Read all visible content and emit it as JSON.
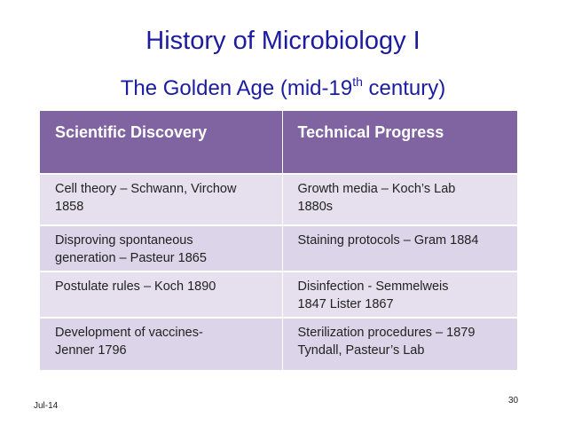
{
  "header": {
    "title": "History of Microbiology I",
    "subtitle": [
      "The Golden Age (mid-19",
      "th",
      " century)"
    ]
  },
  "table": {
    "columns": [
      "Scientific Discovery",
      "Technical Progress"
    ],
    "rows": [
      [
        [
          "Cell theory – Schwann, Virchow",
          "1858"
        ],
        [
          "Growth media – Koch’s Lab",
          "1880s"
        ]
      ],
      [
        [
          "Disproving spontaneous",
          "generation – Pasteur 1865"
        ],
        [
          "Staining protocols – Gram 1884"
        ]
      ],
      [
        [
          "Postulate rules – Koch 1890"
        ],
        [
          "Disinfection - Semmelweis",
          "1847 Lister 1867"
        ]
      ],
      [
        [
          "Development of vaccines-",
          "Jenner 1796"
        ],
        [
          "Sterilization procedures – 1879",
          "Tyndall, Pasteur’s Lab"
        ]
      ]
    ]
  },
  "footer": {
    "date": "Jul-14",
    "page": "30"
  }
}
